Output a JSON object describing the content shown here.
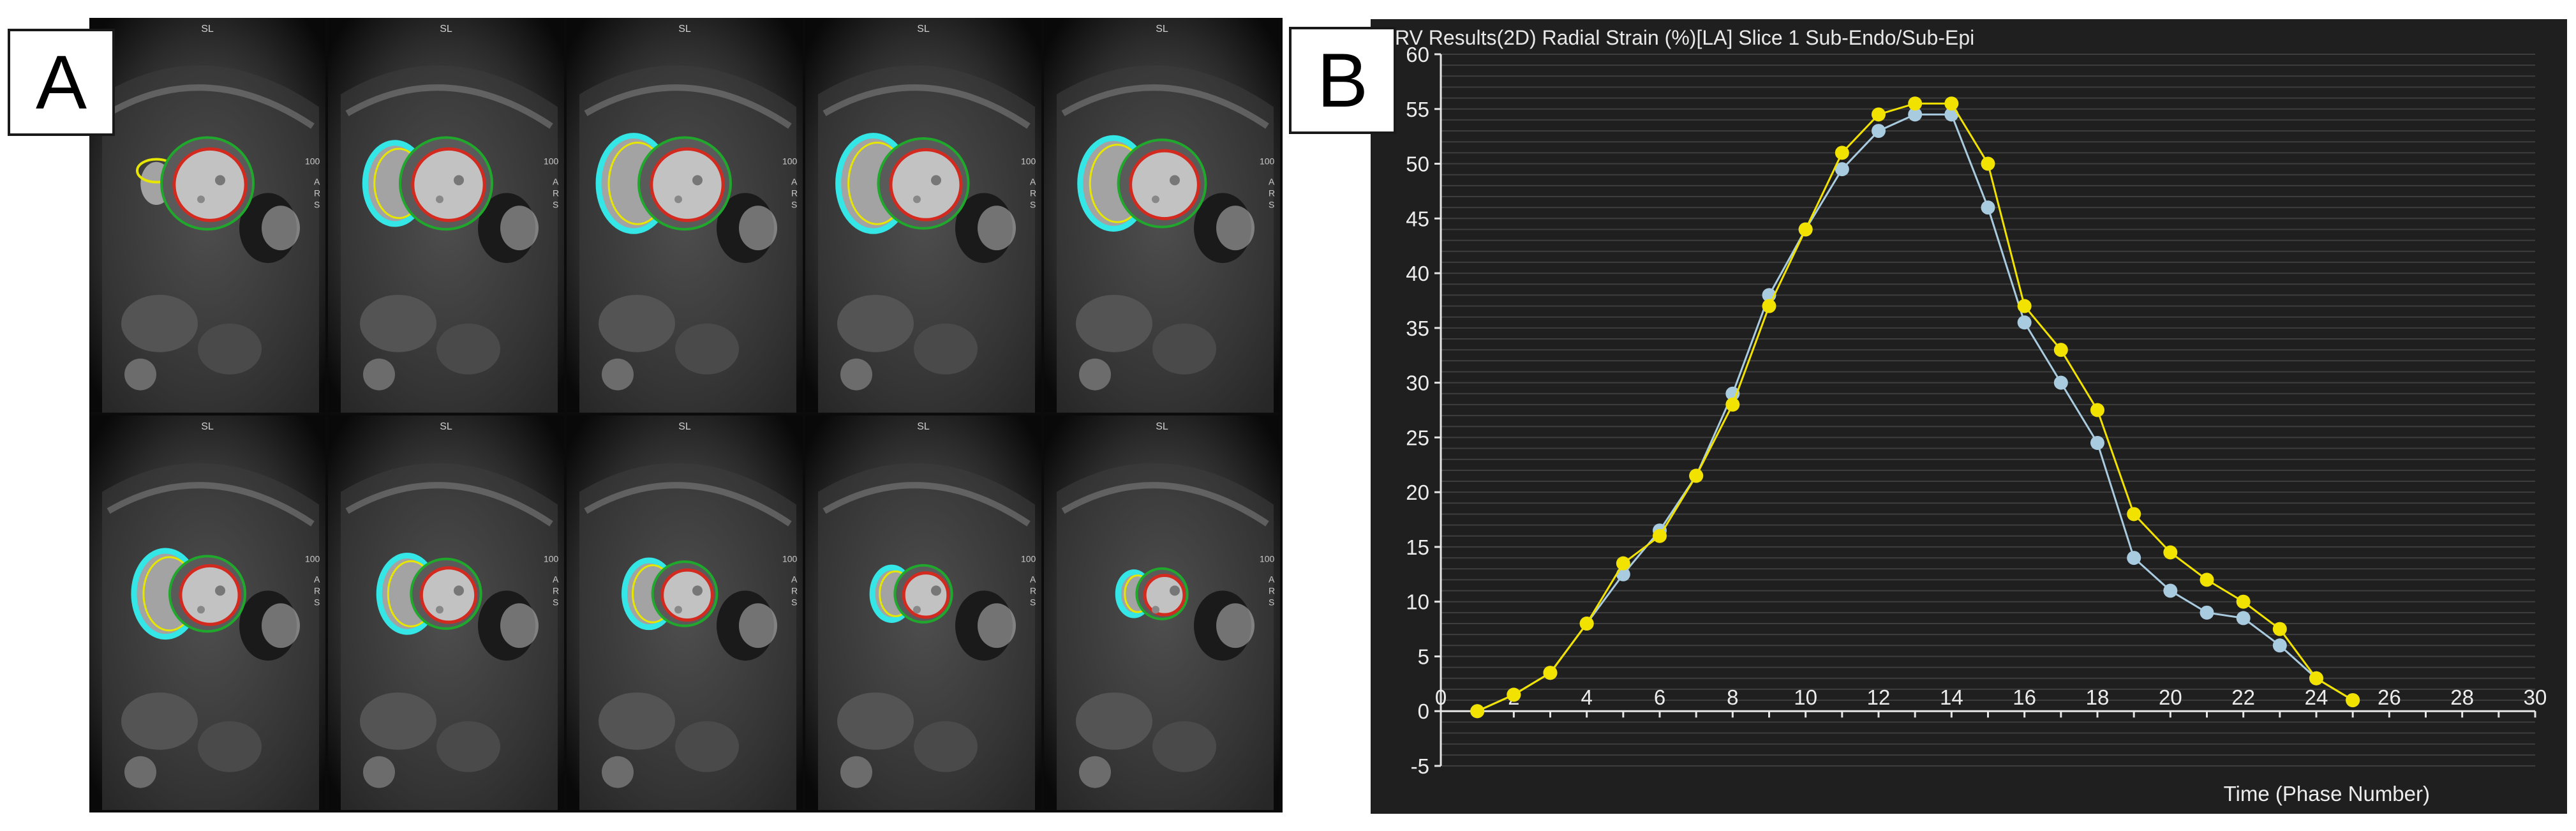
{
  "panels": {
    "a_label": "A",
    "b_label": "B"
  },
  "mri": {
    "orientation_label": "SL",
    "side_labels": [
      "A",
      "R",
      "S"
    ],
    "scale_label": "100"
  },
  "colors": {
    "background": "#1f1f1f",
    "series_endo": "#a9cbe0",
    "series_epi": "#f2e200",
    "grid": "#3e3e3e",
    "axis": "#e6e6e6",
    "contour_lv_endo": "#d32a1f",
    "contour_lv_epi": "#1fa82c",
    "contour_rv_endo": "#e6e600",
    "contour_rv": "#35e6e6"
  },
  "chart_data": {
    "type": "line",
    "title": "RV Results(2D) Radial Strain (%)[LA] Slice 1 Sub-Endo/Sub-Epi",
    "xlabel": "Time (Phase Number)",
    "ylabel": "",
    "xlim": [
      0,
      30
    ],
    "ylim": [
      -5,
      60
    ],
    "x_ticks": [
      0,
      2,
      4,
      6,
      8,
      10,
      12,
      14,
      16,
      18,
      20,
      22,
      24,
      26,
      28,
      30
    ],
    "y_ticks": [
      -5,
      0,
      5,
      10,
      15,
      20,
      25,
      30,
      35,
      40,
      45,
      50,
      55,
      60
    ],
    "grid": true,
    "series": [
      {
        "color": "#a9cbe0",
        "x": [
          1,
          2,
          3,
          4,
          5,
          6,
          7,
          8,
          9,
          10,
          11,
          12,
          13,
          14,
          15,
          16,
          17,
          18,
          19,
          20,
          21,
          22,
          23,
          24,
          25
        ],
        "values": [
          0,
          1.5,
          3.5,
          8,
          12.5,
          16.5,
          21.5,
          29,
          38,
          44,
          49.5,
          53,
          54.5,
          54.5,
          46,
          35.5,
          30,
          24.5,
          14,
          11,
          9,
          8.5,
          6,
          3,
          1
        ]
      },
      {
        "color": "#f2e200",
        "x": [
          1,
          2,
          3,
          4,
          5,
          6,
          7,
          8,
          9,
          10,
          11,
          12,
          13,
          14,
          15,
          16,
          17,
          18,
          19,
          20,
          21,
          22,
          23,
          24,
          25
        ],
        "values": [
          0,
          1.5,
          3.5,
          8,
          13.5,
          16,
          21.5,
          28,
          37,
          44,
          51,
          54.5,
          55.5,
          55.5,
          50,
          37,
          33,
          27.5,
          18,
          14.5,
          12,
          10,
          7.5,
          3,
          1
        ]
      }
    ]
  }
}
